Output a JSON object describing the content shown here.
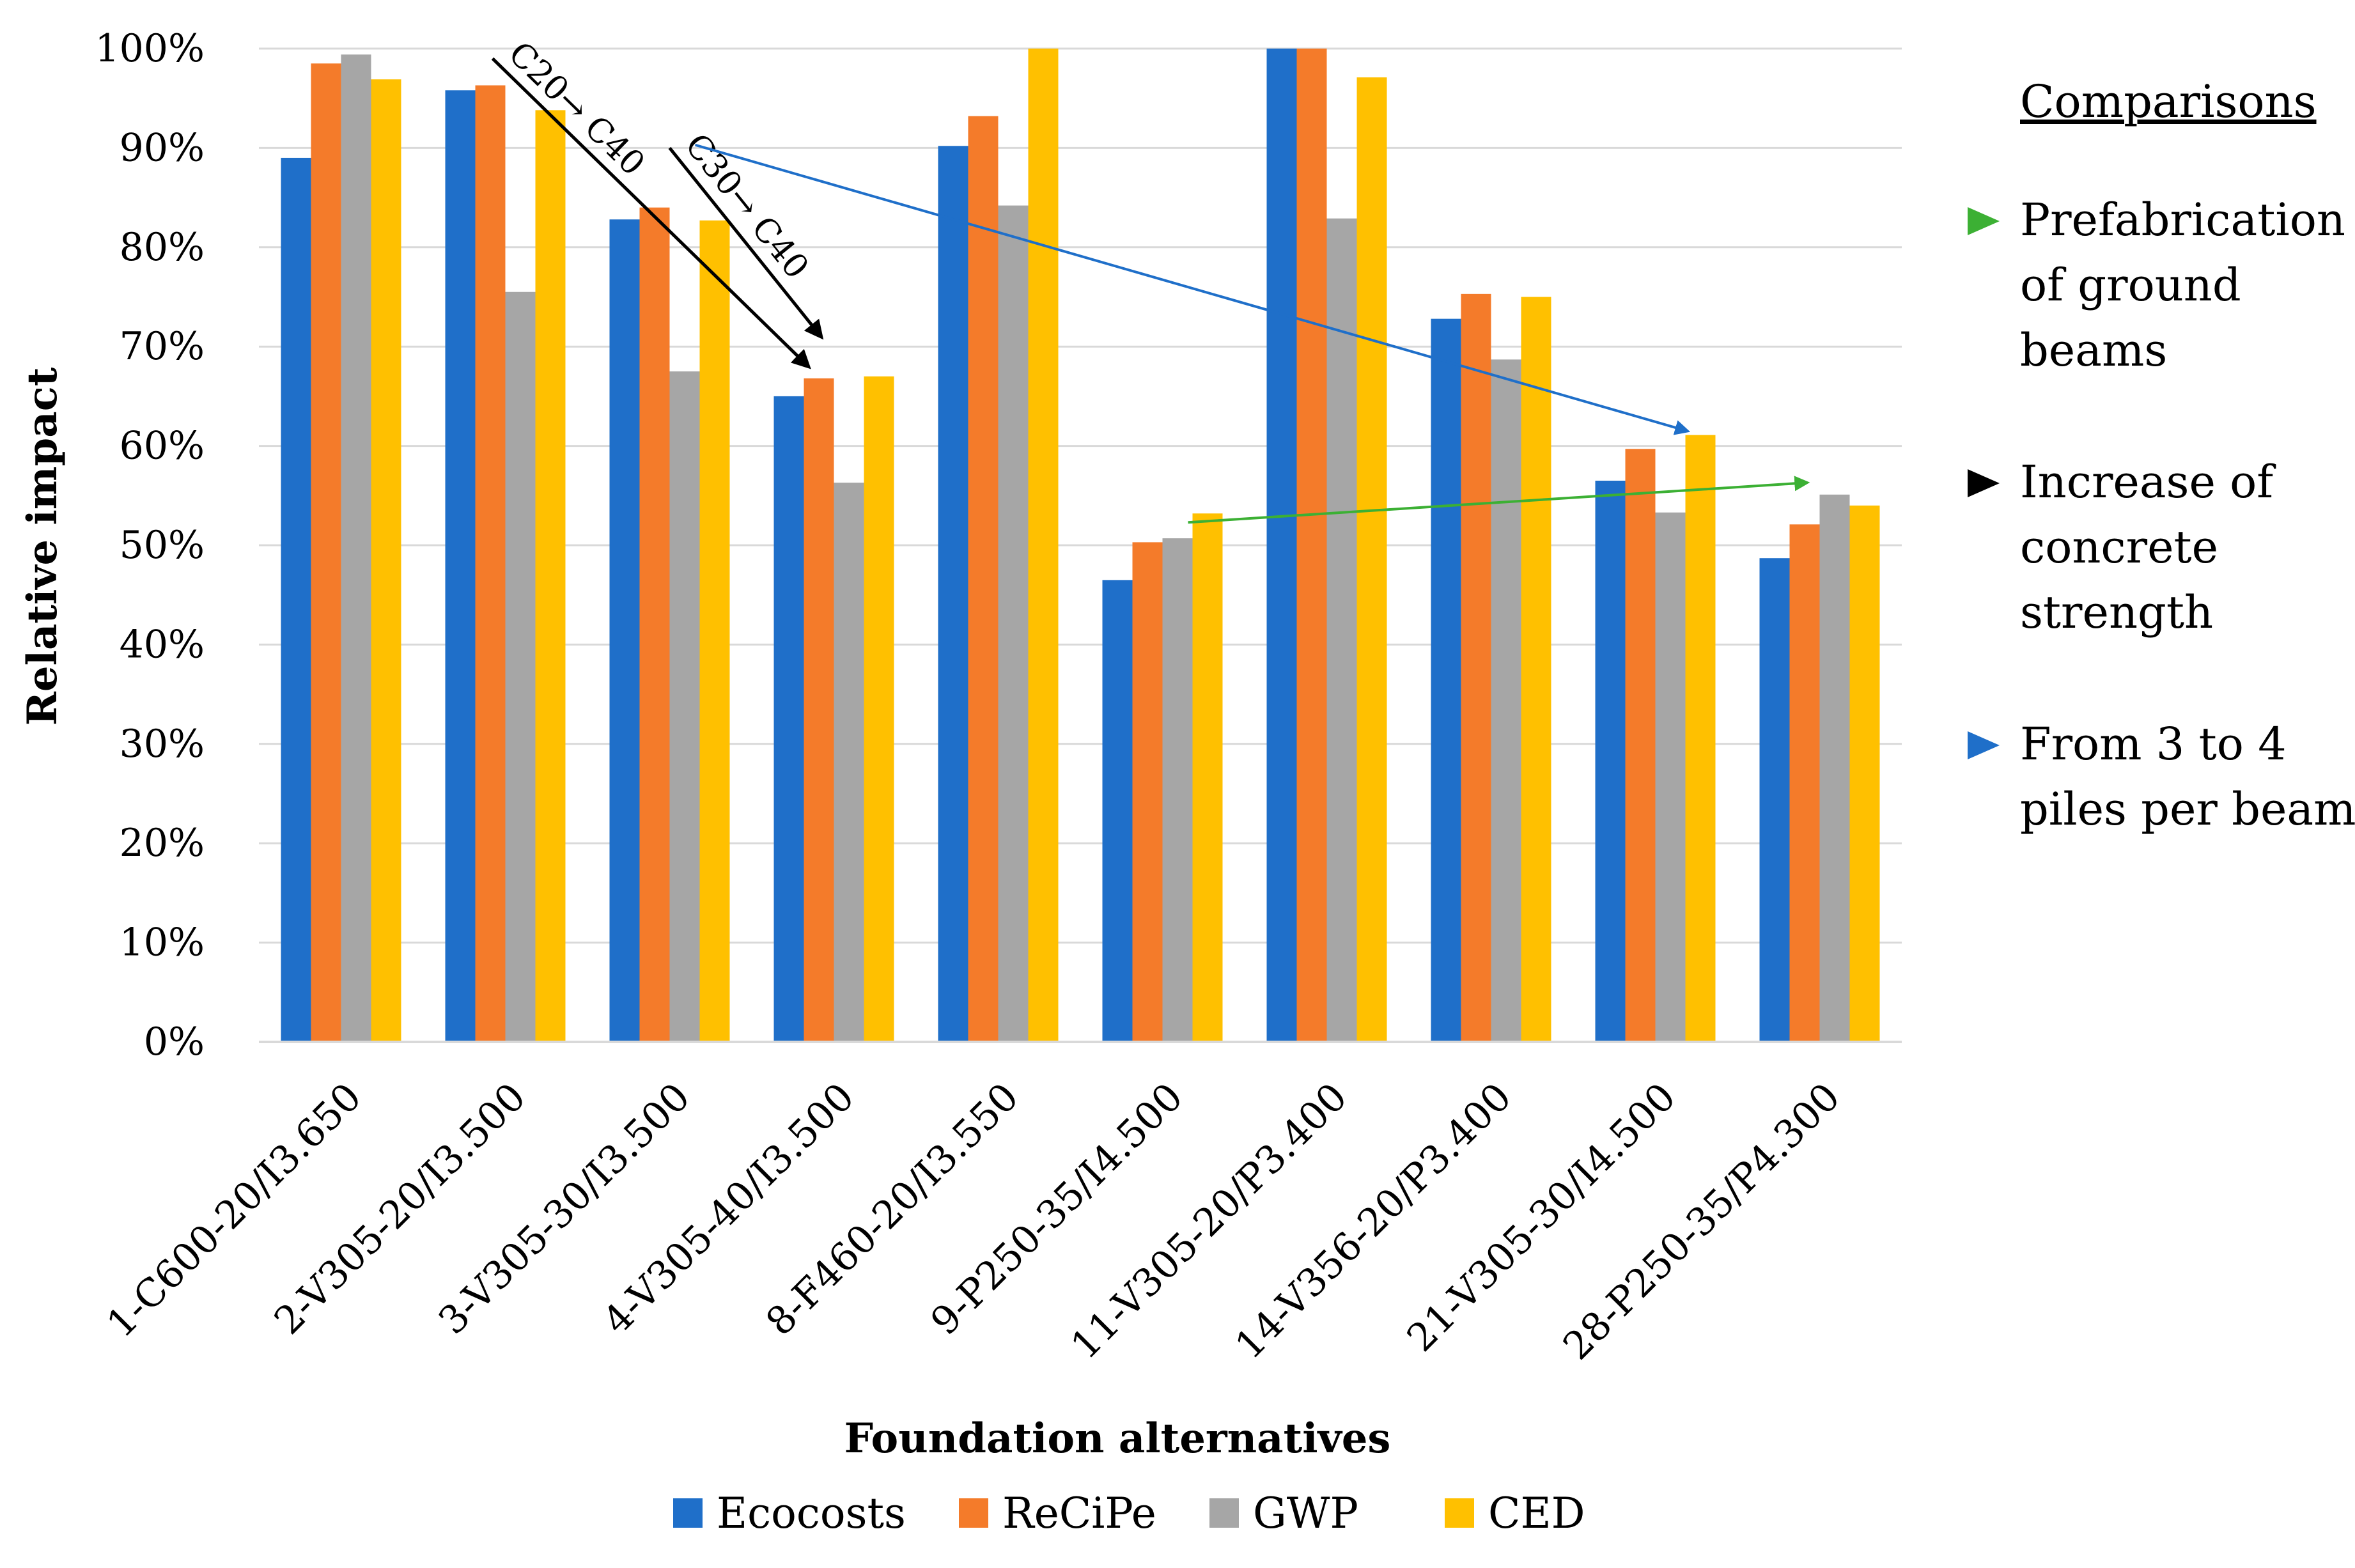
{
  "chart_data": {
    "type": "bar",
    "title": "",
    "xlabel": "Foundation alternatives",
    "ylabel": "Relative impact",
    "ylim": [
      0,
      100
    ],
    "y_ticks": [
      "0%",
      "10%",
      "20%",
      "30%",
      "40%",
      "50%",
      "60%",
      "70%",
      "80%",
      "90%",
      "100%"
    ],
    "grid": true,
    "legend_position": "bottom",
    "categories": [
      "1-C600-20/I3.650",
      "2-V305-20/I3.500",
      "3-V305-30/I3.500",
      "4-V305-40/I3.500",
      "8-F460-20/I3.550",
      "9-P250-35/I4.500",
      "11-V305-20/P3.400",
      "14-V356-20/P3.400",
      "21-V305-30/I4.500",
      "28-P250-35/P4.300"
    ],
    "series": [
      {
        "name": "Ecocosts",
        "color": "#1f6fc9",
        "values": [
          89,
          95.8,
          82.8,
          65,
          90.2,
          46.5,
          100,
          72.8,
          56.5,
          48.7
        ]
      },
      {
        "name": "ReCiPe",
        "color": "#f47b2a",
        "values": [
          98.5,
          96.3,
          84,
          66.8,
          93.2,
          50.3,
          100,
          75.3,
          59.7,
          52.1
        ]
      },
      {
        "name": "GWP",
        "color": "#a6a6a6",
        "values": [
          99.4,
          75.5,
          67.5,
          56.3,
          84.2,
          50.7,
          82.9,
          68.7,
          53.3,
          55.1
        ]
      },
      {
        "name": "CED",
        "color": "#ffc000",
        "values": [
          96.9,
          93.8,
          82.7,
          67,
          100,
          53.2,
          97.1,
          75,
          61.1,
          54
        ]
      }
    ],
    "annotations": [
      {
        "text": "C20→ C40",
        "type": "arrow",
        "color": "#000000",
        "from": {
          "category": "2-V305-20/I3.500",
          "value": 99
        },
        "to": {
          "category": "4-V305-40/I3.500",
          "value": 68
        }
      },
      {
        "text": "C30→ C40",
        "type": "arrow",
        "color": "#000000",
        "from": {
          "category": "3-V305-30/I3.500",
          "value": 90
        },
        "to": {
          "category": "4-V305-40/I3.500",
          "value": 71
        }
      },
      {
        "text": "",
        "type": "arrow",
        "color": "#1f6fc9",
        "from": {
          "category": "3-V305-30/I3.500",
          "value": 90.3
        },
        "to": {
          "category": "21-V305-30/I4.500",
          "value": 61.5
        }
      },
      {
        "text": "",
        "type": "arrow",
        "color": "#3cb034",
        "from": {
          "category": "9-P250-35/I4.500",
          "value": 52.3
        },
        "to": {
          "category": "28-P250-35/P4.300",
          "value": 56.3
        }
      }
    ]
  },
  "comparisons": {
    "title": "Comparisons",
    "items": [
      {
        "color": "#3cb034",
        "lines": [
          "Prefabrication",
          "of ground",
          "beams"
        ]
      },
      {
        "color": "#000000",
        "lines": [
          "Increase of",
          "concrete",
          "strength"
        ]
      },
      {
        "color": "#1f6fc9",
        "lines": [
          "From 3 to 4",
          "piles per beam"
        ]
      }
    ]
  }
}
